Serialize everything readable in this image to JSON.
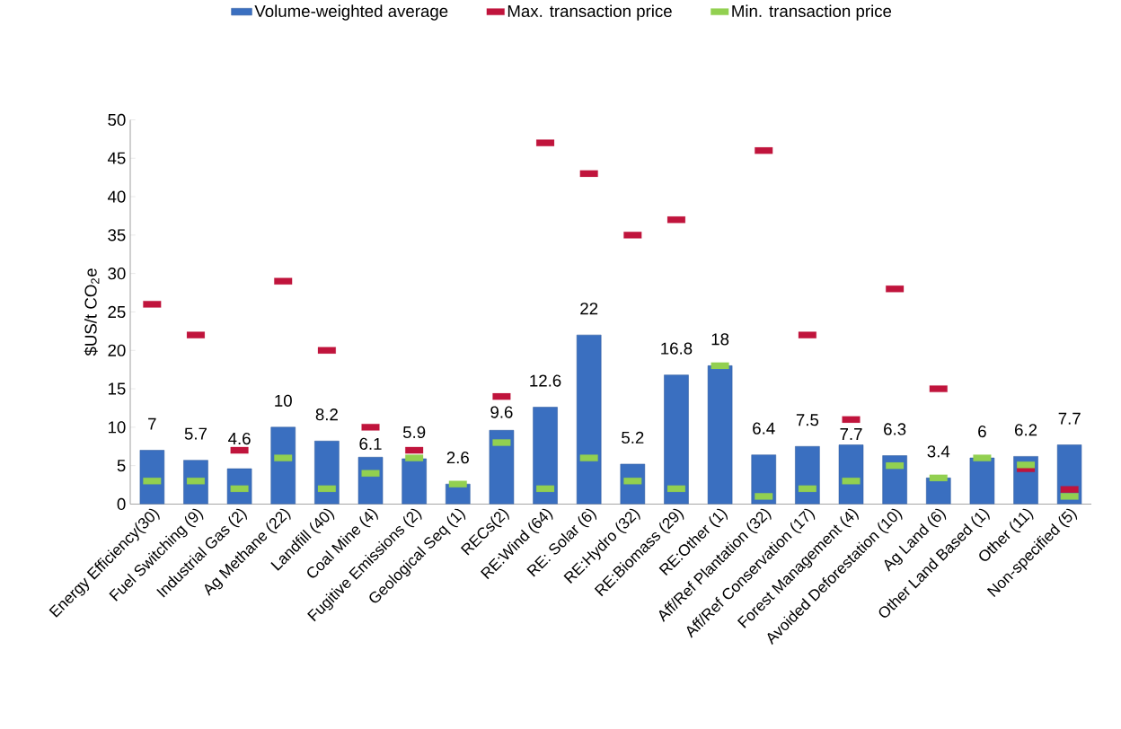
{
  "chart_data": {
    "type": "bar",
    "ylabel": "$US/t CO$_{2}$e",
    "categories": [
      "Energy Efficiency(30)",
      "Fuel Switching (9)",
      "Industrial Gas (2)",
      "Ag Methane (22)",
      "Landfill (40)",
      "Coal Mine (4)",
      "Fugitive Emissions (2)",
      "Geological Seq (1)",
      "RECs(2)",
      "RE:Wind (64)",
      "RE: Solar (6)",
      "RE:Hydro (32)",
      "RE:Biomass (29)",
      "RE:Other  (1)",
      "Aff/Ref Plantation (32)",
      "Aff/Ref Conservation (17)",
      "Forest Management (4)",
      "Avoided Deforestation (10)",
      "Ag Land (6)",
      "Other Land Based (1)",
      "Other (11)",
      "Non-specified (5)"
    ],
    "series": [
      {
        "name": "Volume-weighted average",
        "color": "#3a6fc0",
        "values": [
          7,
          5.7,
          4.6,
          10,
          8.2,
          6.1,
          5.9,
          2.6,
          9.6,
          12.6,
          22,
          5.2,
          16.8,
          18,
          6.4,
          7.5,
          7.7,
          6.3,
          3.4,
          6,
          6.2,
          7.7
        ],
        "value_labels": [
          "7",
          "5.7",
          "4.6",
          "10",
          "8.2",
          "6.1",
          "5.9",
          "2.6",
          "9.6",
          "12.6",
          "22",
          "5.2",
          "16.8",
          "18",
          "6.4",
          "7.5",
          "7.7",
          "6.3",
          "3.4",
          "6",
          "6.2",
          "7.7"
        ]
      },
      {
        "name": "Max. transaction price",
        "type": "scatter",
        "color": "#c0143c",
        "x": [
          "Energy Efficiency(30)",
          "Fuel Switching (9)",
          "Industrial Gas (2)",
          "Ag Methane (22)",
          "Landfill (40)",
          "Coal Mine (4)",
          "Fugitive Emissions (2)",
          "Geological Seq (1)",
          "RECs(2)",
          "RE:Wind (64)",
          "RE: Solar (6)",
          "RE:Hydro (32)",
          "RE:Biomass (29)",
          "RE:Other  (1)",
          "Aff/Ref Plantation (32)",
          "Aff/Ref Conservation (17)",
          "Forest Management (4)",
          "Avoided Deforestation (10)",
          "Ag Land (6)",
          "Other Land Based (1)",
          "Other (11)",
          "Non-specified (5)"
        ],
        "values": [
          26,
          22,
          7,
          29,
          20,
          10,
          7,
          null,
          14,
          47,
          43,
          35,
          37,
          null,
          46,
          22,
          11,
          28,
          15,
          null,
          4.6,
          1.9
        ]
      },
      {
        "name": "Min. transaction price",
        "type": "scatter",
        "color": "#92d050",
        "x": [
          "Energy Efficiency(30)",
          "Fuel Switching (9)",
          "Industrial Gas (2)",
          "Ag Methane (22)",
          "Landfill (40)",
          "Coal Mine (4)",
          "Fugitive Emissions (2)",
          "Geological Seq (1)",
          "RECs(2)",
          "RE:Wind (64)",
          "RE: Solar (6)",
          "RE:Hydro (32)",
          "RE:Biomass (29)",
          "RE:Other  (1)",
          "Aff/Ref Plantation (32)",
          "Aff/Ref Conservation (17)",
          "Forest Management (4)",
          "Avoided Deforestation (10)",
          "Ag Land (6)",
          "Other Land Based (1)",
          "Other (11)",
          "Non-specified (5)"
        ],
        "values": [
          3,
          3,
          2,
          6,
          2,
          4,
          6,
          2.6,
          8,
          2,
          6,
          3,
          2,
          18,
          1,
          2,
          3,
          5,
          3.4,
          6,
          5.1,
          1
        ]
      }
    ],
    "ylim": [
      0,
      50
    ],
    "yticks": [
      0,
      5,
      10,
      15,
      20,
      25,
      30,
      35,
      40,
      45,
      50
    ],
    "legend": "top",
    "grid": false,
    "marker": "square"
  }
}
